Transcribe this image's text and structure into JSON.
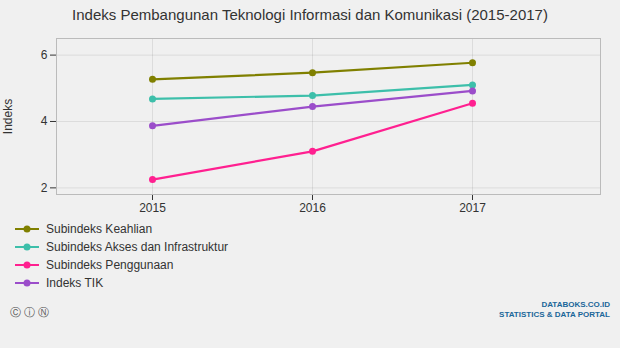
{
  "chart_data": {
    "type": "line",
    "title": "Indeks Pembangunan Teknologi Informasi dan Komunikasi (2015-2017)",
    "x": [
      2015,
      2016,
      2017
    ],
    "series": [
      {
        "name": "Subindeks Keahlian",
        "values": [
          5.27,
          5.47,
          5.77
        ],
        "color": "#808000",
        "marker": "circle"
      },
      {
        "name": "Subindeks Akses dan Infrastruktur",
        "values": [
          4.68,
          4.78,
          5.1
        ],
        "color": "#3dbfaa",
        "marker": "circle"
      },
      {
        "name": "Subindeks Penggunaan",
        "values": [
          2.25,
          3.1,
          4.55
        ],
        "color": "#ff2090",
        "marker": "circle"
      },
      {
        "name": "Indeks TIK",
        "values": [
          3.87,
          4.45,
          4.92
        ],
        "color": "#9b4dca",
        "marker": "circle"
      }
    ],
    "ylabel": "Indeks",
    "xlim": [
      2014.4,
      2017.8
    ],
    "xticks": [
      2015,
      2016,
      2017
    ],
    "ylim": [
      1.8,
      6.5
    ],
    "yticks": [
      2,
      4,
      6
    ],
    "grid": true,
    "legend": "bottom",
    "annotations": [
      "DATABOKS.CO.ID",
      "STATISTICS & DATA PORTAL",
      "Ⓒ ⓘ Ⓝ"
    ]
  }
}
